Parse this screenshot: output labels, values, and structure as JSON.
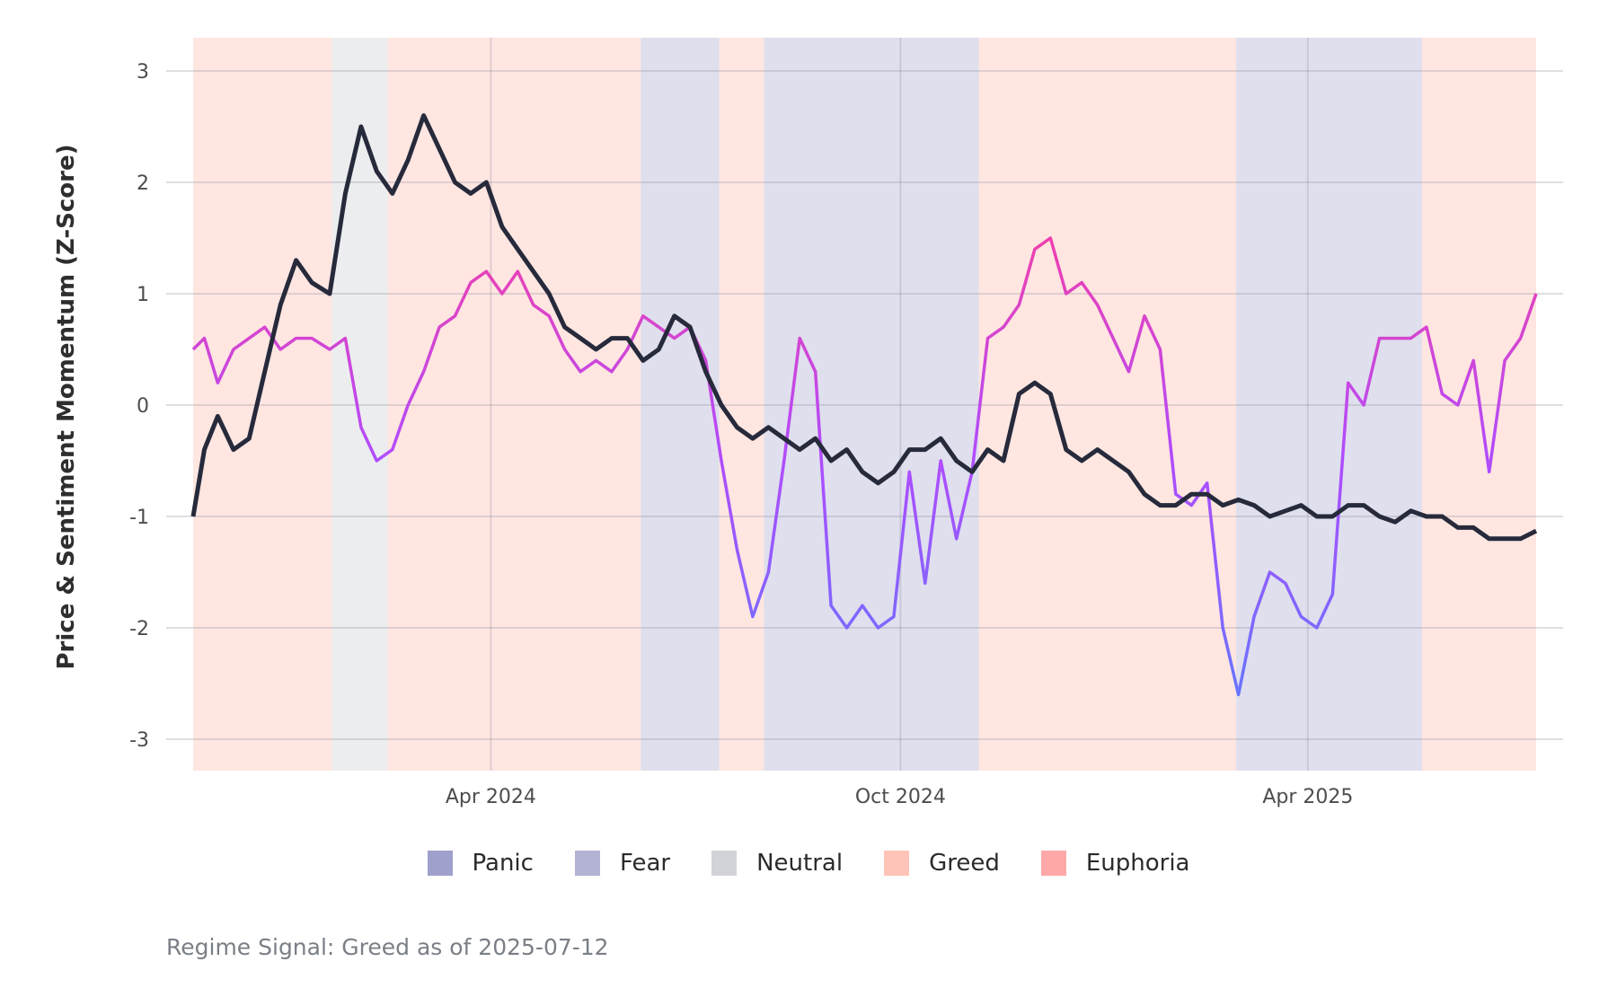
{
  "chart_data": {
    "type": "line",
    "title": "",
    "xlabel": "",
    "ylabel": "Price & Sentiment Momentum (Z-Score)",
    "ylim": [
      -3.3,
      3.3
    ],
    "y_ticks": [
      3,
      2,
      1,
      0,
      -1,
      -2,
      -3
    ],
    "y_tick_labels": [
      "3",
      "2",
      "1",
      "0",
      "-1",
      "-2",
      "-3"
    ],
    "x_ticks": [
      {
        "date": "2024-04-01",
        "label": "Apr 2024"
      },
      {
        "date": "2024-10-01",
        "label": "Oct 2024"
      },
      {
        "date": "2025-04-01",
        "label": "Apr 2025"
      }
    ],
    "date_range": [
      "2023-11-20",
      "2025-07-12"
    ],
    "grid": true,
    "legend_placement": "bottom",
    "regimes": [
      {
        "name": "Panic",
        "color": "#a0a0cc"
      },
      {
        "name": "Fear",
        "color": "#b3b3d3"
      },
      {
        "name": "Neutral",
        "color": "#d1d3d8"
      },
      {
        "name": "Greed",
        "color": "#ffc4b8"
      },
      {
        "name": "Euphoria",
        "color": "#ffa8a8"
      }
    ],
    "regime_periods": [
      {
        "start": "2023-11-20",
        "end": "2024-01-21",
        "regime": "Greed"
      },
      {
        "start": "2024-01-21",
        "end": "2024-02-15",
        "regime": "Neutral"
      },
      {
        "start": "2024-02-15",
        "end": "2024-06-07",
        "regime": "Greed"
      },
      {
        "start": "2024-06-07",
        "end": "2024-07-12",
        "regime": "Fear"
      },
      {
        "start": "2024-07-12",
        "end": "2024-08-01",
        "regime": "Greed"
      },
      {
        "start": "2024-08-01",
        "end": "2024-11-05",
        "regime": "Fear"
      },
      {
        "start": "2024-11-05",
        "end": "2025-02-28",
        "regime": "Greed"
      },
      {
        "start": "2025-02-28",
        "end": "2025-05-22",
        "regime": "Fear"
      },
      {
        "start": "2025-05-22",
        "end": "2025-07-12",
        "regime": "Greed"
      }
    ],
    "series": [
      {
        "role": "price",
        "color": "#262a3b",
        "x": [
          "2023-11-20",
          "2023-11-25",
          "2023-12-01",
          "2023-12-08",
          "2023-12-15",
          "2023-12-22",
          "2023-12-29",
          "2024-01-05",
          "2024-01-12",
          "2024-01-20",
          "2024-01-27",
          "2024-02-03",
          "2024-02-10",
          "2024-02-17",
          "2024-02-24",
          "2024-03-02",
          "2024-03-09",
          "2024-03-16",
          "2024-03-23",
          "2024-03-30",
          "2024-04-06",
          "2024-04-13",
          "2024-04-20",
          "2024-04-27",
          "2024-05-04",
          "2024-05-11",
          "2024-05-18",
          "2024-05-25",
          "2024-06-01",
          "2024-06-08",
          "2024-06-15",
          "2024-06-22",
          "2024-06-29",
          "2024-07-06",
          "2024-07-13",
          "2024-07-20",
          "2024-07-27",
          "2024-08-03",
          "2024-08-10",
          "2024-08-17",
          "2024-08-24",
          "2024-08-31",
          "2024-09-07",
          "2024-09-14",
          "2024-09-21",
          "2024-09-28",
          "2024-10-05",
          "2024-10-12",
          "2024-10-19",
          "2024-10-26",
          "2024-11-02",
          "2024-11-09",
          "2024-11-16",
          "2024-11-23",
          "2024-11-30",
          "2024-12-07",
          "2024-12-14",
          "2024-12-21",
          "2024-12-28",
          "2025-01-04",
          "2025-01-11",
          "2025-01-18",
          "2025-01-25",
          "2025-02-01",
          "2025-02-08",
          "2025-02-15",
          "2025-02-22",
          "2025-03-01",
          "2025-03-08",
          "2025-03-15",
          "2025-03-22",
          "2025-03-29",
          "2025-04-05",
          "2025-04-12",
          "2025-04-19",
          "2025-04-26",
          "2025-05-03",
          "2025-05-10",
          "2025-05-17",
          "2025-05-24",
          "2025-05-31",
          "2025-06-07",
          "2025-06-14",
          "2025-06-21",
          "2025-06-28",
          "2025-07-05",
          "2025-07-12"
        ],
        "values": [
          -1.0,
          -0.4,
          -0.1,
          -0.4,
          -0.3,
          0.3,
          0.9,
          1.3,
          1.1,
          1.0,
          1.9,
          2.5,
          2.1,
          1.9,
          2.2,
          2.6,
          2.3,
          2.0,
          1.9,
          2.0,
          1.6,
          1.4,
          1.2,
          1.0,
          0.7,
          0.6,
          0.5,
          0.6,
          0.6,
          0.4,
          0.5,
          0.8,
          0.7,
          0.3,
          0.0,
          -0.2,
          -0.3,
          -0.2,
          -0.3,
          -0.4,
          -0.3,
          -0.5,
          -0.4,
          -0.6,
          -0.7,
          -0.6,
          -0.4,
          -0.4,
          -0.3,
          -0.5,
          -0.6,
          -0.4,
          -0.5,
          0.1,
          0.2,
          0.1,
          -0.4,
          -0.5,
          -0.4,
          -0.5,
          -0.6,
          -0.8,
          -0.9,
          -0.9,
          -0.8,
          -0.8,
          -0.9,
          -0.85,
          -0.9,
          -1.0,
          -0.95,
          -0.9,
          -1.0,
          -1.0,
          -0.9,
          -0.9,
          -1.0,
          -1.05,
          -0.95,
          -1.0,
          -1.0,
          -1.1,
          -1.1,
          -1.2,
          -1.2,
          -1.2,
          -1.13
        ]
      },
      {
        "role": "sentiment",
        "color_low": "#5b7cff",
        "color_high": "#ff3c9a",
        "x": [
          "2023-11-20",
          "2023-11-25",
          "2023-12-01",
          "2023-12-08",
          "2023-12-15",
          "2023-12-22",
          "2023-12-29",
          "2024-01-05",
          "2024-01-12",
          "2024-01-20",
          "2024-01-27",
          "2024-02-03",
          "2024-02-10",
          "2024-02-17",
          "2024-02-24",
          "2024-03-02",
          "2024-03-09",
          "2024-03-16",
          "2024-03-23",
          "2024-03-30",
          "2024-04-06",
          "2024-04-13",
          "2024-04-20",
          "2024-04-27",
          "2024-05-04",
          "2024-05-11",
          "2024-05-18",
          "2024-05-25",
          "2024-06-01",
          "2024-06-08",
          "2024-06-15",
          "2024-06-22",
          "2024-06-29",
          "2024-07-06",
          "2024-07-13",
          "2024-07-20",
          "2024-07-27",
          "2024-08-03",
          "2024-08-10",
          "2024-08-17",
          "2024-08-24",
          "2024-08-31",
          "2024-09-07",
          "2024-09-14",
          "2024-09-21",
          "2024-09-28",
          "2024-10-05",
          "2024-10-12",
          "2024-10-19",
          "2024-10-26",
          "2024-11-02",
          "2024-11-09",
          "2024-11-16",
          "2024-11-23",
          "2024-11-30",
          "2024-12-07",
          "2024-12-14",
          "2024-12-21",
          "2024-12-28",
          "2025-01-04",
          "2025-01-11",
          "2025-01-18",
          "2025-01-25",
          "2025-02-01",
          "2025-02-08",
          "2025-02-15",
          "2025-02-22",
          "2025-03-01",
          "2025-03-08",
          "2025-03-15",
          "2025-03-22",
          "2025-03-29",
          "2025-04-05",
          "2025-04-12",
          "2025-04-19",
          "2025-04-26",
          "2025-05-03",
          "2025-05-10",
          "2025-05-17",
          "2025-05-24",
          "2025-05-31",
          "2025-06-07",
          "2025-06-14",
          "2025-06-21",
          "2025-06-28",
          "2025-07-05",
          "2025-07-12"
        ],
        "values": [
          0.5,
          0.6,
          0.2,
          0.5,
          0.6,
          0.7,
          0.5,
          0.6,
          0.6,
          0.5,
          0.6,
          -0.2,
          -0.5,
          -0.4,
          0.0,
          0.3,
          0.7,
          0.8,
          1.1,
          1.2,
          1.0,
          1.2,
          0.9,
          0.8,
          0.5,
          0.3,
          0.4,
          0.3,
          0.5,
          0.8,
          0.7,
          0.6,
          0.7,
          0.4,
          -0.5,
          -1.3,
          -1.9,
          -1.5,
          -0.5,
          0.6,
          0.3,
          -1.8,
          -2.0,
          -1.8,
          -2.0,
          -1.9,
          -0.6,
          -1.6,
          -0.5,
          -1.2,
          -0.6,
          0.6,
          0.7,
          0.9,
          1.4,
          1.5,
          1.0,
          1.1,
          0.9,
          0.6,
          0.3,
          0.8,
          0.5,
          -0.8,
          -0.9,
          -0.7,
          -2.0,
          -2.6,
          -1.9,
          -1.5,
          -1.6,
          -1.9,
          -2.0,
          -1.7,
          0.2,
          0.0,
          0.6,
          0.6,
          0.6,
          0.7,
          0.1,
          0.0,
          0.4,
          -0.6,
          0.4,
          0.6,
          1.0
        ]
      }
    ],
    "caption": "Regime Signal: Greed as of 2025-07-12"
  }
}
